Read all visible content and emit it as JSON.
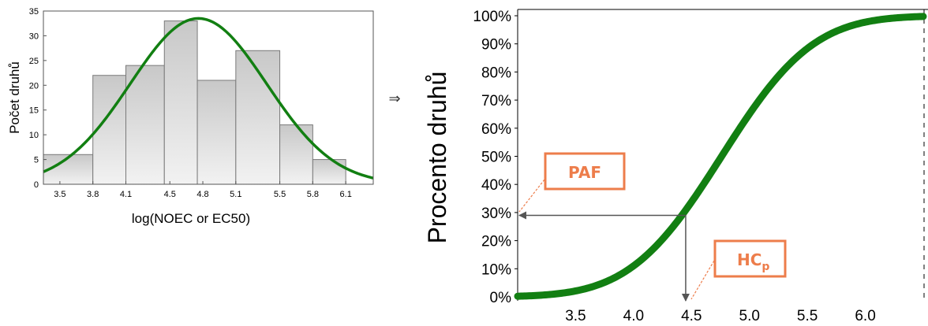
{
  "charts": {
    "histogram": {
      "ylabel": "Počet druhů",
      "xlabel": "log(NOEC or EC50)"
    },
    "cdf": {
      "ylabel": "Procento druhů",
      "callouts": {
        "paf": "PAF",
        "hcp_main": "HC",
        "hcp_sub": "p"
      }
    }
  },
  "arrow_symbol": "⇒",
  "colors": {
    "curve": "#127F12",
    "bar_fill_top": "#c8c8c8",
    "bar_fill_bottom": "#f2f2f2",
    "bar_stroke": "#7a7a7a",
    "callout": "#ED7D4B",
    "guide": "#555555"
  },
  "chart_data": [
    {
      "type": "bar",
      "categories": [
        "3.35-3.8",
        "3.8-4.1",
        "4.1-4.45",
        "4.45-4.75",
        "4.75-5.1",
        "5.1-5.5",
        "5.5-5.8",
        "5.8-6.1"
      ],
      "bin_edges": [
        3.35,
        3.8,
        4.1,
        4.45,
        4.75,
        5.1,
        5.5,
        5.8,
        6.1
      ],
      "values": [
        6,
        22,
        24,
        33,
        21,
        27,
        12,
        5
      ],
      "fit_curve": {
        "type": "normal",
        "mean": 4.76,
        "sd": 0.62,
        "peak": 33.5
      },
      "xlim": [
        3.35,
        6.35
      ],
      "ylim": [
        0,
        35
      ],
      "xticks": [
        3.5,
        3.8,
        4.1,
        4.5,
        4.8,
        5.1,
        5.5,
        5.8,
        6.1
      ],
      "yticks": [
        0,
        5,
        10,
        15,
        20,
        25,
        30,
        35
      ],
      "xlabel": "log(NOEC or EC50)",
      "ylabel": "Počet druhů",
      "grid": false
    },
    {
      "type": "line",
      "curve": {
        "type": "normal_cdf",
        "mean": 4.76,
        "sd": 0.62
      },
      "xlim": [
        3.0,
        6.5
      ],
      "ylim": [
        0,
        1
      ],
      "xticks": [
        3.5,
        4.0,
        4.5,
        5.0,
        5.5,
        6.0
      ],
      "yticks": [
        0,
        0.1,
        0.2,
        0.3,
        0.4,
        0.5,
        0.6,
        0.7,
        0.8,
        0.9,
        1.0
      ],
      "ytick_labels": [
        "0%",
        "10%",
        "20%",
        "30%",
        "40%",
        "50%",
        "60%",
        "70%",
        "80%",
        "90%",
        "100%"
      ],
      "ylabel": "Procento druhů",
      "annotations": [
        {
          "label": "PAF",
          "points_to": {
            "x": 3.0,
            "y": 0.29
          }
        },
        {
          "label": "HCp",
          "points_to": {
            "x": 4.45,
            "y": 0.0
          }
        }
      ],
      "guide_point": {
        "x": 4.45,
        "y": 0.29
      },
      "grid": false
    }
  ]
}
